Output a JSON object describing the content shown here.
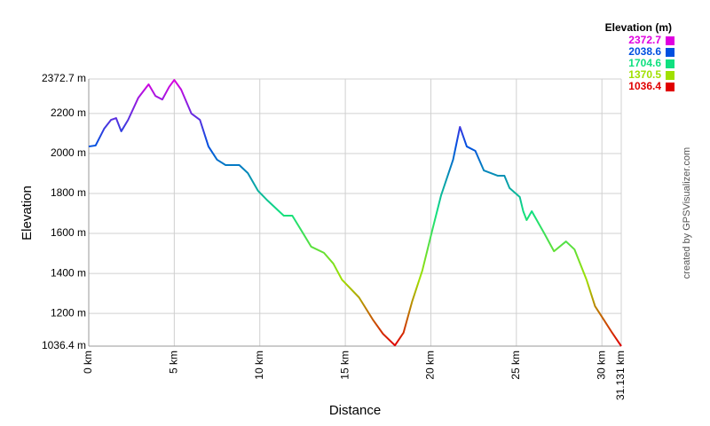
{
  "chart_data": {
    "type": "line",
    "x_label": "Distance",
    "y_label": "Elevation",
    "credit": "created by GPSVisualizer.com",
    "xlim": [
      0,
      31.131
    ],
    "ylim": [
      1036.4,
      2372.7
    ],
    "xticks": [
      {
        "value": 0,
        "label": "0 km"
      },
      {
        "value": 5,
        "label": "5 km"
      },
      {
        "value": 10,
        "label": "10 km"
      },
      {
        "value": 15,
        "label": "15 km"
      },
      {
        "value": 20,
        "label": "20 km"
      },
      {
        "value": 25,
        "label": "25 km"
      },
      {
        "value": 30,
        "label": "30 km"
      },
      {
        "value": 31.131,
        "label": "31.131 km"
      }
    ],
    "yticks": [
      {
        "value": 1036.4,
        "label": "1036.4 m"
      },
      {
        "value": 1200,
        "label": "1200 m"
      },
      {
        "value": 1400,
        "label": "1400 m"
      },
      {
        "value": 1600,
        "label": "1600 m"
      },
      {
        "value": 1800,
        "label": "1800 m"
      },
      {
        "value": 2000,
        "label": "2000 m"
      },
      {
        "value": 2200,
        "label": "2200 m"
      },
      {
        "value": 2372.7,
        "label": "2372.7 m"
      }
    ],
    "grid": true,
    "color_scale": {
      "title": "Elevation (m)",
      "stops": [
        {
          "value": 2372.7,
          "color": "#e000e0"
        },
        {
          "value": 2038.6,
          "color": "#0050e0"
        },
        {
          "value": 1704.6,
          "color": "#10e080"
        },
        {
          "value": 1370.5,
          "color": "#a0e000"
        },
        {
          "value": 1036.4,
          "color": "#e00000"
        }
      ]
    },
    "x": [
      0,
      0.4,
      0.9,
      1.3,
      1.6,
      1.9,
      2.3,
      2.9,
      3.5,
      3.9,
      4.3,
      4.7,
      5.0,
      5.4,
      6.0,
      6.5,
      7.0,
      7.5,
      8.0,
      8.8,
      9.3,
      9.9,
      10.4,
      11.4,
      11.9,
      12.5,
      13.0,
      13.75,
      14.3,
      14.8,
      15.8,
      16.6,
      17.2,
      17.9,
      18.4,
      18.9,
      19.5,
      20.1,
      20.6,
      21.3,
      21.7,
      22.1,
      22.6,
      23.1,
      23.9,
      24.3,
      24.6,
      25.2,
      25.4,
      25.6,
      25.9,
      26.6,
      27.2,
      27.9,
      28.4,
      29.1,
      29.6,
      30.1,
      30.6,
      31.131
    ],
    "series": [
      {
        "name": "Elevation",
        "values": [
          2035,
          2040,
          2124,
          2168,
          2177,
          2111,
          2168,
          2279,
          2346,
          2288,
          2270,
          2333,
          2368,
          2320,
          2200,
          2168,
          2035,
          1969,
          1942,
          1942,
          1902,
          1813,
          1769,
          1689,
          1689,
          1605,
          1534,
          1503,
          1449,
          1369,
          1280,
          1170,
          1098,
          1040,
          1103,
          1258,
          1414,
          1622,
          1791,
          1969,
          2133,
          2035,
          2013,
          1915,
          1889,
          1889,
          1827,
          1782,
          1711,
          1667,
          1711,
          1605,
          1511,
          1560,
          1520,
          1369,
          1236,
          1170,
          1103,
          1036.4
        ]
      }
    ]
  }
}
